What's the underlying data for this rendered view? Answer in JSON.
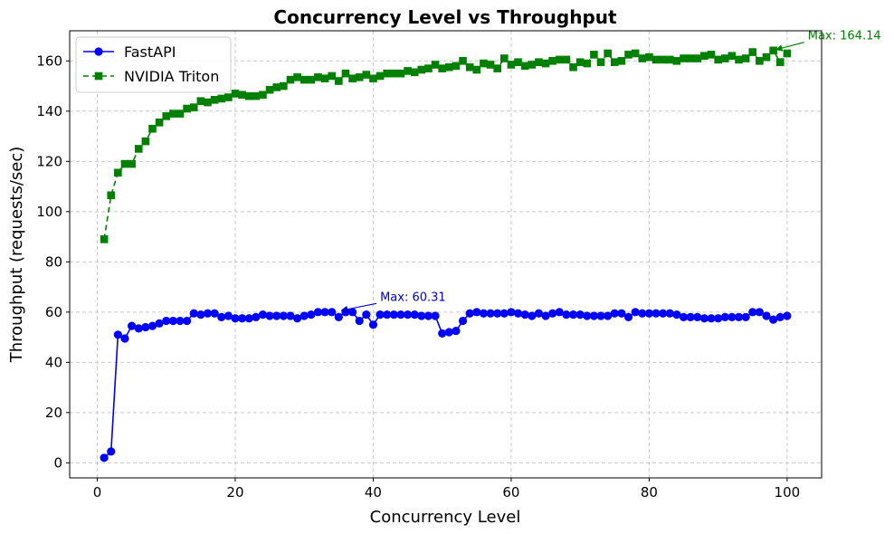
{
  "chart_data": {
    "type": "line",
    "title": "Concurrency Level vs Throughput",
    "xlabel": "Concurrency Level",
    "ylabel": "Throughput (requests/sec)",
    "xlim": [
      -4,
      105
    ],
    "ylim": [
      -6,
      172
    ],
    "xticks": [
      0,
      20,
      40,
      60,
      80,
      100
    ],
    "yticks": [
      0,
      20,
      40,
      60,
      80,
      100,
      120,
      140,
      160
    ],
    "grid": true,
    "legend_position": "top-left",
    "x": [
      1,
      2,
      3,
      4,
      5,
      6,
      7,
      8,
      9,
      10,
      11,
      12,
      13,
      14,
      15,
      16,
      17,
      18,
      19,
      20,
      21,
      22,
      23,
      24,
      25,
      26,
      27,
      28,
      29,
      30,
      31,
      32,
      33,
      34,
      35,
      36,
      37,
      38,
      39,
      40,
      41,
      42,
      43,
      44,
      45,
      46,
      47,
      48,
      49,
      50,
      51,
      52,
      53,
      54,
      55,
      56,
      57,
      58,
      59,
      60,
      61,
      62,
      63,
      64,
      65,
      66,
      67,
      68,
      69,
      70,
      71,
      72,
      73,
      74,
      75,
      76,
      77,
      78,
      79,
      80,
      81,
      82,
      83,
      84,
      85,
      86,
      87,
      88,
      89,
      90,
      91,
      92,
      93,
      94,
      95,
      96,
      97,
      98,
      99,
      100
    ],
    "series": [
      {
        "name": "FastAPI",
        "color": "#0000ff",
        "marker": "circle",
        "line_style": "solid",
        "values": [
          2,
          4.5,
          51,
          49.5,
          54.5,
          53.5,
          54,
          54.5,
          55.5,
          56.5,
          56.5,
          56.5,
          56.5,
          59.5,
          59,
          59.5,
          59.5,
          58,
          58.5,
          57.5,
          57.5,
          57.5,
          58,
          59,
          58.5,
          58.5,
          58.5,
          58.5,
          57.5,
          58.5,
          59,
          60,
          60,
          60,
          58,
          60,
          60,
          56.5,
          59,
          55,
          59,
          59,
          59,
          59,
          59,
          59,
          58.5,
          58.5,
          58.5,
          51.5,
          52,
          52.5,
          56.5,
          59.5,
          60,
          59.5,
          59.5,
          59.5,
          59.5,
          60,
          59.5,
          59,
          58.5,
          59.5,
          58.5,
          59.5,
          60,
          59,
          59,
          59,
          58.5,
          58.5,
          58.5,
          58.5,
          59.5,
          59.5,
          58,
          60,
          59.5,
          59.5,
          59.5,
          59.5,
          59.5,
          59,
          58,
          58,
          58,
          57.5,
          57.5,
          57.5,
          58,
          58,
          58,
          58,
          60,
          60,
          58.5,
          57,
          58,
          58.5
        ]
      },
      {
        "name": "NVIDIA Triton",
        "color": "#008000",
        "marker": "square",
        "line_style": "dashed",
        "values": [
          89,
          106.5,
          115.5,
          119,
          119,
          125,
          128,
          133,
          135.5,
          138,
          139,
          139,
          141,
          141.5,
          144,
          143.5,
          144.5,
          145,
          145.5,
          147,
          146.5,
          146,
          146,
          146.5,
          148.5,
          149.5,
          150,
          152.5,
          153.5,
          152.5,
          152.5,
          153.5,
          153,
          154,
          152,
          155,
          153,
          153.5,
          154.5,
          153,
          154,
          155,
          155,
          155,
          156,
          155.5,
          156.5,
          157,
          158.5,
          157,
          157.5,
          158,
          160,
          157.5,
          156.5,
          159,
          158.5,
          157,
          161,
          158.5,
          159.5,
          158,
          158.5,
          159.5,
          159,
          160,
          160.5,
          160.5,
          157.5,
          159.5,
          159,
          162.5,
          159.5,
          163,
          159.5,
          160,
          162.5,
          163,
          161,
          161.5,
          160.5,
          160.5,
          160.5,
          160,
          161,
          161,
          161,
          162,
          162.5,
          160.5,
          161,
          162,
          160.5,
          161,
          163.5,
          160,
          161.5,
          164.14,
          159.5,
          163
        ]
      }
    ],
    "annotations": [
      {
        "text": "Max: 60.31",
        "series": "FastAPI",
        "x": 35,
        "y": 60.31,
        "text_x": 41,
        "text_y": 64.5,
        "color": "#0000cc"
      },
      {
        "text": "Max: 164.14",
        "series": "NVIDIA Triton",
        "x": 98,
        "y": 164.14,
        "text_x": 103,
        "text_y": 168.5,
        "color": "#008000"
      }
    ]
  }
}
